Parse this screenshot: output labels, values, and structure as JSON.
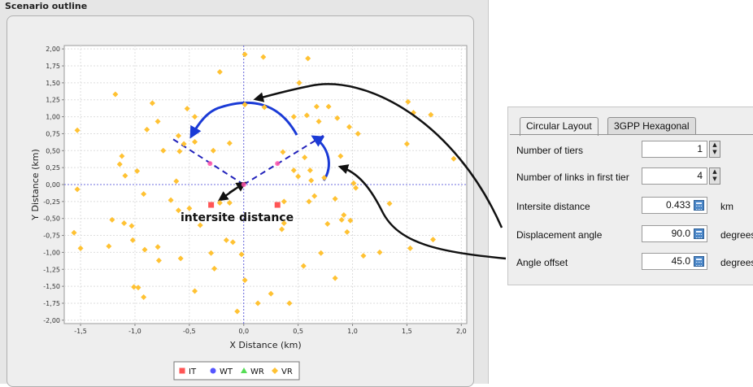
{
  "panel": {
    "title": "Scenario outline"
  },
  "chart_data": {
    "type": "scatter",
    "xlabel": "X Distance (km)",
    "ylabel": "Y Distance (km)",
    "xlim": [
      -1.65,
      2.05
    ],
    "ylim": [
      -2.05,
      2.05
    ],
    "x_ticks": [
      -1.5,
      -1.0,
      -0.5,
      0.0,
      0.5,
      1.0,
      1.5,
      2.0
    ],
    "x_tick_labels": [
      "-1,5",
      "-1,0",
      "-0,5",
      "0,0",
      "0,5",
      "1,0",
      "1,5",
      "2,0"
    ],
    "y_ticks": [
      2.0,
      1.75,
      1.5,
      1.25,
      1.0,
      0.75,
      0.5,
      0.25,
      0.0,
      -0.25,
      -0.5,
      -0.75,
      -1.0,
      -1.25,
      -1.5,
      -1.75,
      -2.0
    ],
    "y_tick_labels": [
      "2,00",
      "1,75",
      "1,50",
      "1,25",
      "1,00",
      "0,75",
      "0,50",
      "0,25",
      "0,00",
      "-0,25",
      "-0,50",
      "-0,75",
      "-1,00",
      "-1,25",
      "-1,50",
      "-1,75",
      "-2,00"
    ],
    "grid": true,
    "legend_position": "bottom-center",
    "legend": [
      {
        "name": "IT",
        "color": "#ff5555",
        "marker": "square"
      },
      {
        "name": "WT",
        "color": "#5555ff",
        "marker": "circle"
      },
      {
        "name": "WR",
        "color": "#55dd55",
        "marker": "triangle"
      },
      {
        "name": "VR",
        "color": "#ffc233",
        "marker": "diamond"
      }
    ],
    "series": [
      {
        "name": "IT",
        "color": "#ff5555",
        "marker": "square",
        "points": [
          [
            -0.3,
            -0.3
          ],
          [
            0.31,
            -0.3
          ]
        ]
      },
      {
        "name": "WT",
        "color": "#5555ff",
        "marker": "circle",
        "points": [
          [
            -0.31,
            0.31
          ],
          [
            0.0,
            0.0
          ],
          [
            0.31,
            0.31
          ]
        ]
      },
      {
        "name": "VR",
        "color": "#ffc233",
        "marker": "diamond",
        "points": [
          [
            0.01,
            1.92
          ],
          [
            0.18,
            1.88
          ],
          [
            -0.22,
            1.66
          ],
          [
            -1.18,
            1.33
          ],
          [
            -0.84,
            1.2
          ],
          [
            -0.52,
            1.12
          ],
          [
            0.59,
            1.86
          ],
          [
            0.51,
            1.5
          ],
          [
            1.51,
            1.22
          ],
          [
            1.56,
            1.06
          ],
          [
            1.72,
            1.03
          ],
          [
            0.19,
            1.14
          ],
          [
            0.78,
            1.15
          ],
          [
            0.67,
            1.15
          ],
          [
            -0.89,
            0.81
          ],
          [
            -0.79,
            0.93
          ],
          [
            -1.53,
            0.8
          ],
          [
            -0.45,
            1.0
          ],
          [
            -0.6,
            0.72
          ],
          [
            0.46,
            1.0
          ],
          [
            0.58,
            1.02
          ],
          [
            0.01,
            1.18
          ],
          [
            0.86,
            0.98
          ],
          [
            0.69,
            0.93
          ],
          [
            1.05,
            0.75
          ],
          [
            1.5,
            0.6
          ],
          [
            0.97,
            0.85
          ],
          [
            -0.74,
            0.5
          ],
          [
            -0.55,
            0.6
          ],
          [
            -0.59,
            0.49
          ],
          [
            -1.12,
            0.42
          ],
          [
            -1.14,
            0.3
          ],
          [
            -0.45,
            0.63
          ],
          [
            -0.28,
            0.5
          ],
          [
            -0.13,
            0.61
          ],
          [
            0.36,
            0.48
          ],
          [
            0.56,
            0.4
          ],
          [
            0.89,
            0.42
          ],
          [
            0.46,
            0.21
          ],
          [
            0.61,
            0.21
          ],
          [
            0.5,
            0.12
          ],
          [
            -0.98,
            0.2
          ],
          [
            -1.09,
            0.13
          ],
          [
            -0.62,
            0.05
          ],
          [
            0.62,
            0.06
          ],
          [
            0.74,
            0.1
          ],
          [
            1.01,
            0.02
          ],
          [
            1.03,
            -0.05
          ],
          [
            1.93,
            0.38
          ],
          [
            -1.53,
            -0.07
          ],
          [
            -0.92,
            -0.14
          ],
          [
            -0.67,
            -0.23
          ],
          [
            -0.22,
            -0.27
          ],
          [
            -0.13,
            -0.27
          ],
          [
            0.37,
            -0.25
          ],
          [
            0.6,
            -0.25
          ],
          [
            0.65,
            -0.17
          ],
          [
            0.84,
            -0.21
          ],
          [
            1.34,
            -0.28
          ],
          [
            0.92,
            -0.45
          ],
          [
            -0.5,
            -0.35
          ],
          [
            -0.6,
            -0.38
          ],
          [
            0.9,
            -0.52
          ],
          [
            0.98,
            -0.53
          ],
          [
            0.95,
            -0.7
          ],
          [
            0.35,
            -0.66
          ],
          [
            -1.21,
            -0.52
          ],
          [
            -1.03,
            -0.61
          ],
          [
            -1.1,
            -0.57
          ],
          [
            -0.4,
            -0.6
          ],
          [
            0.37,
            -0.57
          ],
          [
            0.77,
            -0.58
          ],
          [
            -1.56,
            -0.71
          ],
          [
            -1.24,
            -0.91
          ],
          [
            -1.5,
            -0.94
          ],
          [
            -1.02,
            -0.82
          ],
          [
            -0.79,
            -0.92
          ],
          [
            -0.91,
            -0.96
          ],
          [
            -0.16,
            -0.82
          ],
          [
            -0.1,
            -0.85
          ],
          [
            -0.58,
            -1.09
          ],
          [
            -0.3,
            -1.01
          ],
          [
            -0.02,
            -1.03
          ],
          [
            1.1,
            -1.05
          ],
          [
            1.25,
            -1.0
          ],
          [
            1.74,
            -0.81
          ],
          [
            1.53,
            -0.94
          ],
          [
            0.71,
            -1.01
          ],
          [
            -0.78,
            -1.12
          ],
          [
            0.55,
            -1.2
          ],
          [
            -0.27,
            -1.24
          ],
          [
            0.84,
            -1.38
          ],
          [
            -1.01,
            -1.51
          ],
          [
            -0.97,
            -1.52
          ],
          [
            -0.92,
            -1.66
          ],
          [
            -0.45,
            -1.57
          ],
          [
            0.01,
            -1.41
          ],
          [
            0.25,
            -1.61
          ],
          [
            0.13,
            -1.75
          ],
          [
            0.42,
            -1.75
          ],
          [
            -0.06,
            -1.87
          ]
        ]
      }
    ],
    "annotation": "intersite distance"
  },
  "config": {
    "tabs": [
      {
        "label": "Circular Layout",
        "active": true
      },
      {
        "label": "3GPP Hexagonal",
        "active": false
      }
    ],
    "fields": [
      {
        "label": "Number of tiers",
        "value": "1",
        "control": "spinner",
        "unit": ""
      },
      {
        "label": "Number of links in first tier",
        "value": "4",
        "control": "spinner",
        "unit": ""
      },
      {
        "label": "Intersite distance",
        "value": "0.433",
        "control": "calculator",
        "unit": "km"
      },
      {
        "label": "Displacement angle",
        "value": "90.0",
        "control": "calculator",
        "unit": "degrees"
      },
      {
        "label": "Angle offset",
        "value": "45.0",
        "control": "calculator",
        "unit": "degrees"
      }
    ]
  }
}
